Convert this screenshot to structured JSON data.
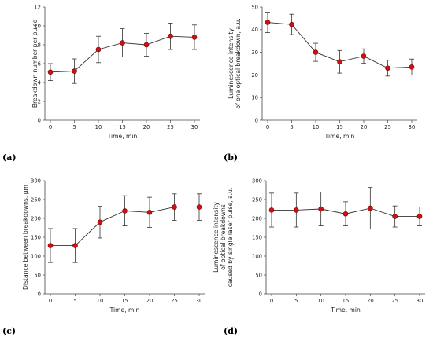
{
  "chart_data": [
    {
      "panel": "(a)",
      "type": "line",
      "xlabel": "Time, min",
      "ylabel": [
        "Breakdown number per pulse"
      ],
      "x": [
        0,
        5,
        10,
        15,
        20,
        25,
        30
      ],
      "y": [
        5.1,
        5.2,
        7.5,
        8.2,
        8.0,
        8.9,
        8.8
      ],
      "err": [
        0.9,
        1.3,
        1.4,
        1.5,
        1.2,
        1.4,
        1.3
      ],
      "xticks": [
        0,
        5,
        10,
        15,
        20,
        25,
        30
      ],
      "yticks": [
        0,
        2,
        4,
        6,
        8,
        10,
        12
      ],
      "ylim": [
        0,
        12
      ],
      "marker_color": "#d01010",
      "line_color": "#333333"
    },
    {
      "panel": "(b)",
      "type": "line",
      "xlabel": "Time, min",
      "ylabel": [
        "Luminescence intensity",
        "of one optical breakdown, a.u."
      ],
      "x": [
        0,
        5,
        10,
        15,
        20,
        25,
        30
      ],
      "y": [
        43.2,
        42.3,
        30.0,
        25.8,
        28.3,
        23.0,
        23.5
      ],
      "err": [
        4.5,
        4.5,
        4.0,
        5.0,
        3.2,
        3.5,
        3.5
      ],
      "xticks": [
        0,
        5,
        10,
        15,
        20,
        25,
        30
      ],
      "yticks": [
        0,
        10,
        20,
        30,
        40,
        50
      ],
      "ylim": [
        0,
        50
      ],
      "marker_color": "#d01010",
      "line_color": "#333333"
    },
    {
      "panel": "(c)",
      "type": "line",
      "xlabel": "Time, min",
      "ylabel": [
        "Distance between breakdowns, µm"
      ],
      "x": [
        0,
        5,
        10,
        15,
        20,
        25,
        30
      ],
      "y": [
        128,
        128,
        190,
        220,
        216,
        230,
        230
      ],
      "err": [
        45,
        45,
        42,
        40,
        40,
        35,
        35
      ],
      "xticks": [
        0,
        5,
        10,
        15,
        20,
        25,
        30
      ],
      "yticks": [
        0,
        50,
        100,
        150,
        200,
        250,
        300
      ],
      "ylim": [
        0,
        300
      ],
      "marker_color": "#d01010",
      "line_color": "#333333"
    },
    {
      "panel": "(d)",
      "type": "line",
      "xlabel": "Time, min",
      "ylabel": [
        "Luminescence intensity",
        "of optical breakdowns",
        "caused by single laser pulse, a.u."
      ],
      "x": [
        0,
        5,
        10,
        15,
        20,
        25,
        30
      ],
      "y": [
        222,
        222,
        225,
        212,
        227,
        205,
        205
      ],
      "err": [
        45,
        45,
        45,
        32,
        55,
        28,
        25
      ],
      "xticks": [
        0,
        5,
        10,
        15,
        20,
        25,
        30
      ],
      "yticks": [
        0,
        50,
        100,
        150,
        200,
        250,
        300
      ],
      "ylim": [
        0,
        300
      ],
      "marker_color": "#d01010",
      "line_color": "#333333"
    }
  ]
}
